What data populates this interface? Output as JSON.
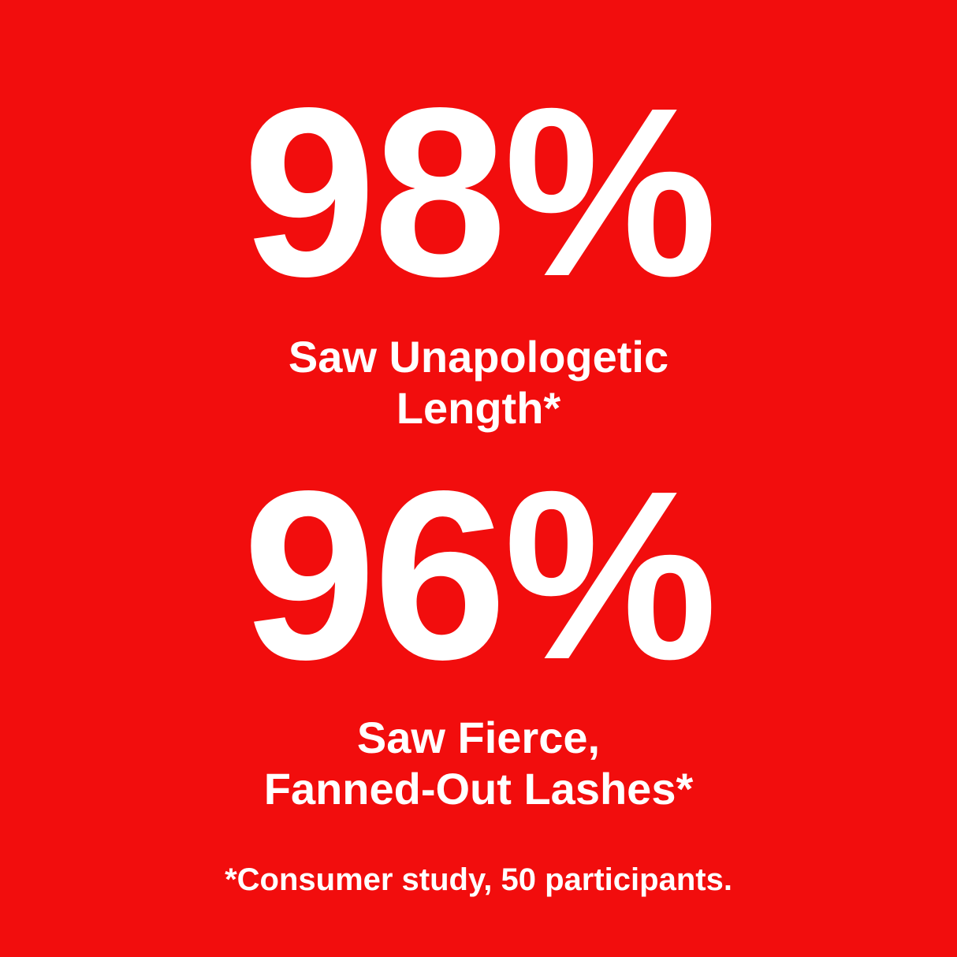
{
  "background_color": "#F20D0D",
  "text_color": "#FFFFFF",
  "stats": [
    {
      "value": "98%",
      "caption_lines": [
        "Saw Unapologetic",
        "Length*"
      ]
    },
    {
      "value": "96%",
      "caption_lines": [
        "Saw Fierce,",
        "Fanned-Out Lashes*"
      ]
    }
  ],
  "footnote": "*Consumer study, 50 participants."
}
